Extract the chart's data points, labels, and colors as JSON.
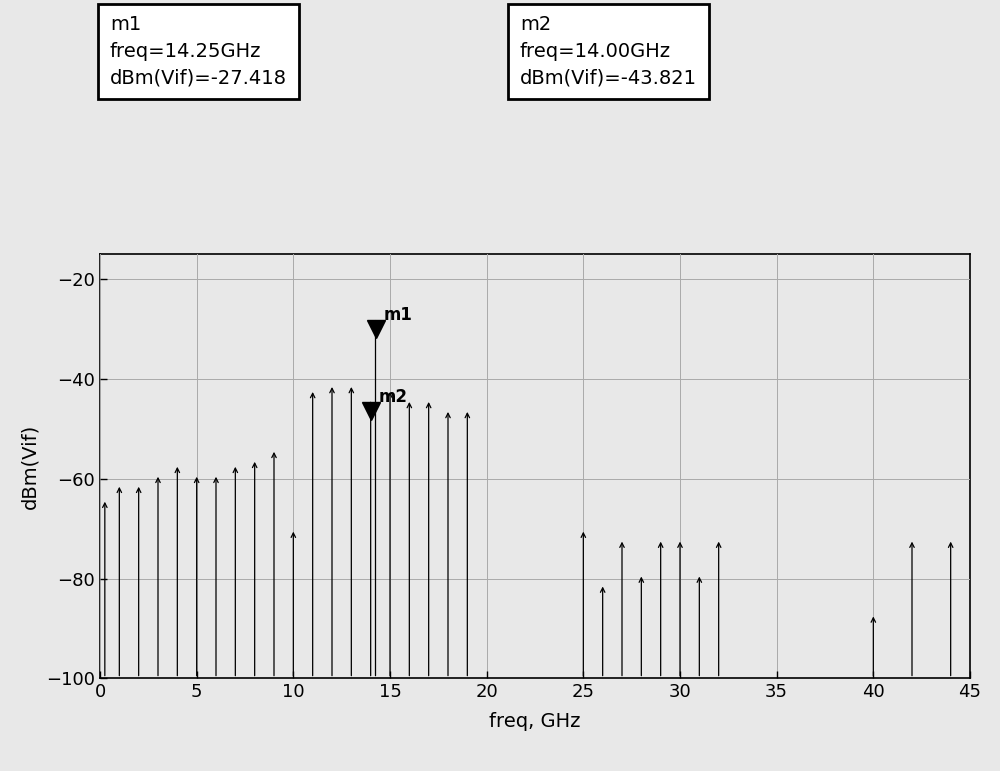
{
  "xlabel": "freq, GHz",
  "ylabel": "dBm(Vif)",
  "xlim": [
    0,
    45
  ],
  "ylim": [
    -100,
    -15
  ],
  "yticks": [
    -20,
    -40,
    -60,
    -80,
    -100
  ],
  "xticks": [
    0,
    5,
    10,
    15,
    20,
    25,
    30,
    35,
    40,
    45
  ],
  "m1_freq": 14.25,
  "m1_dbm": -27.418,
  "m2_freq": 14.0,
  "m2_dbm": -43.821,
  "m1_label": "m1\nfreq=14.25GHz\ndBm(Vif)=-27.418",
  "m2_label": "m2\nfreq=14.00GHz\ndBm(Vif)=-43.821",
  "spikes": [
    [
      0.25,
      -64
    ],
    [
      1.0,
      -61
    ],
    [
      2.0,
      -61
    ],
    [
      3.0,
      -59
    ],
    [
      4.0,
      -57
    ],
    [
      5.0,
      -59
    ],
    [
      6.0,
      -59
    ],
    [
      7.0,
      -57
    ],
    [
      8.0,
      -56
    ],
    [
      9.0,
      -54
    ],
    [
      10.0,
      -70
    ],
    [
      11.0,
      -42
    ],
    [
      12.0,
      -41
    ],
    [
      13.0,
      -41
    ],
    [
      14.0,
      -43.821
    ],
    [
      14.25,
      -27.418
    ],
    [
      15.0,
      -42
    ],
    [
      16.0,
      -44
    ],
    [
      17.0,
      -44
    ],
    [
      18.0,
      -46
    ],
    [
      19.0,
      -46
    ],
    [
      25.0,
      -70
    ],
    [
      26.0,
      -81
    ],
    [
      27.0,
      -72
    ],
    [
      28.0,
      -79
    ],
    [
      29.0,
      -72
    ],
    [
      30.0,
      -72
    ],
    [
      31.0,
      -79
    ],
    [
      32.0,
      -72
    ],
    [
      40.0,
      -87
    ],
    [
      42.0,
      -72
    ],
    [
      44.0,
      -72
    ],
    [
      45.0,
      -100
    ]
  ],
  "bg_color": "#e8e8e8",
  "grid_color": "#aaaaaa",
  "spine_color": "#000000",
  "annotation_font_size": 14,
  "axis_label_font_size": 14,
  "tick_font_size": 13
}
